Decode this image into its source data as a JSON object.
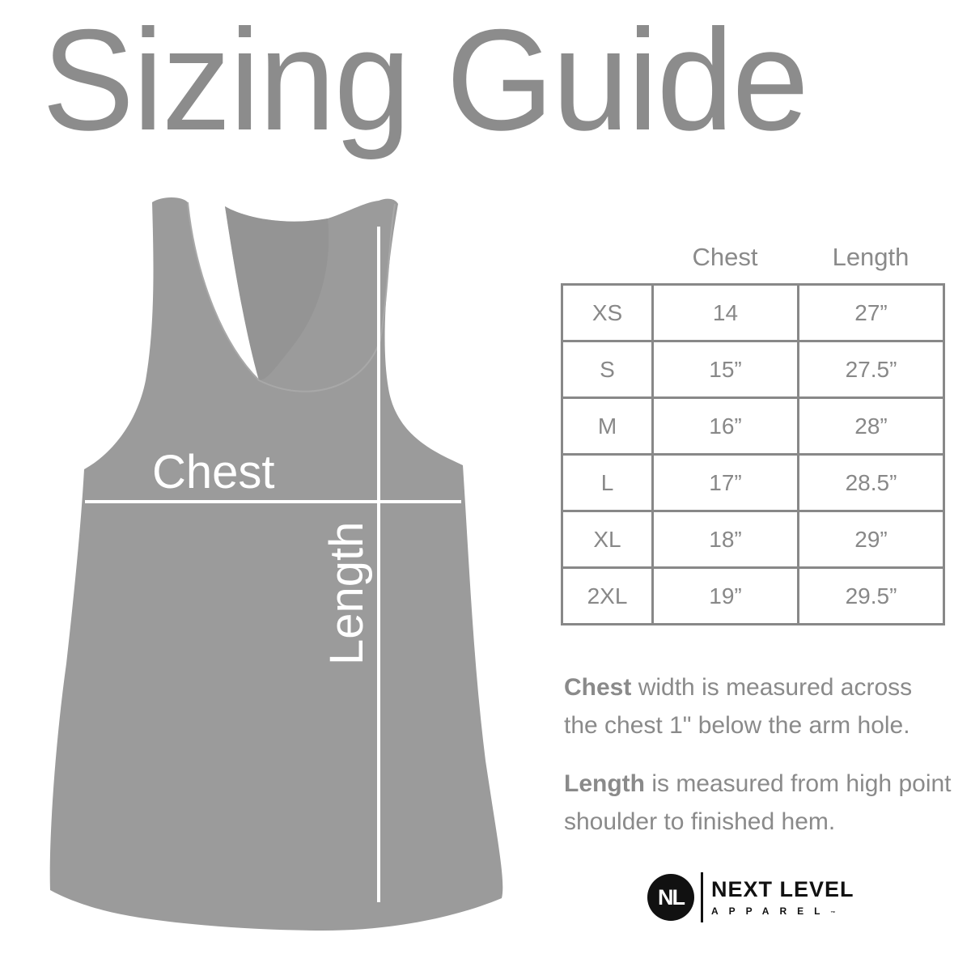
{
  "title": "Sizing Guide",
  "garment": {
    "chest_label": "Chest",
    "length_label": "Length",
    "color": "#9b9b9b"
  },
  "table": {
    "headers": [
      "Chest",
      "Length"
    ],
    "rows": [
      {
        "size": "XS",
        "chest": "14",
        "length": "27”"
      },
      {
        "size": "S",
        "chest": "15”",
        "length": "27.5”"
      },
      {
        "size": "M",
        "chest": "16”",
        "length": "28”"
      },
      {
        "size": "L",
        "chest": "17”",
        "length": "28.5”"
      },
      {
        "size": "XL",
        "chest": "18”",
        "length": "29”"
      },
      {
        "size": "2XL",
        "chest": "19”",
        "length": "29.5”"
      }
    ]
  },
  "notes": [
    {
      "term": "Chest",
      "text": " width is measured across the chest 1\" below the arm hole."
    },
    {
      "term": "Length",
      "text": " is measured from high point shoulder to finished hem."
    }
  ],
  "logo": {
    "mark": "NL",
    "name": "NEXT LEVEL",
    "sub": "APPAREL",
    "tm": "™"
  }
}
